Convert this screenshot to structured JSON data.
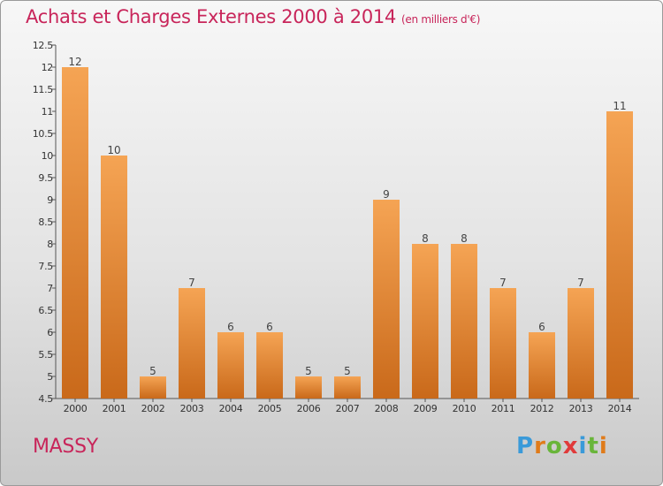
{
  "title": "Achats et Charges Externes 2000 à 2014",
  "unit": "(en milliers d'€)",
  "town": "MASSY",
  "logo": {
    "letters": [
      "P",
      "r",
      "o",
      "x",
      "i",
      "t",
      "i"
    ],
    "colors": [
      "#3a9ad9",
      "#e07b1a",
      "#69b53a",
      "#e03a3a",
      "#3a9ad9",
      "#69b53a",
      "#e07b1a"
    ]
  },
  "colors": {
    "title": "#c8255a",
    "bar_top": "#f5a454",
    "bar_bottom": "#c9691a"
  },
  "chart_data": {
    "type": "bar",
    "title": "Achats et Charges Externes 2000 à 2014",
    "subtitle": "(en milliers d'€)",
    "xlabel": "",
    "ylabel": "",
    "categories": [
      "2000",
      "2001",
      "2002",
      "2003",
      "2004",
      "2005",
      "2006",
      "2007",
      "2008",
      "2009",
      "2010",
      "2011",
      "2012",
      "2013",
      "2014"
    ],
    "values": [
      12,
      10,
      5,
      7,
      6,
      6,
      5,
      5,
      9,
      8,
      8,
      7,
      6,
      7,
      11
    ],
    "ylim": [
      4.5,
      12.5
    ],
    "yticks": [
      "4.5",
      "5",
      "5.5",
      "6",
      "6.5",
      "7",
      "7.5",
      "8",
      "8.5",
      "9",
      "9.5",
      "10",
      "10.5",
      "11",
      "11.5",
      "12",
      "12.5"
    ],
    "grid": false,
    "legend": "none"
  }
}
